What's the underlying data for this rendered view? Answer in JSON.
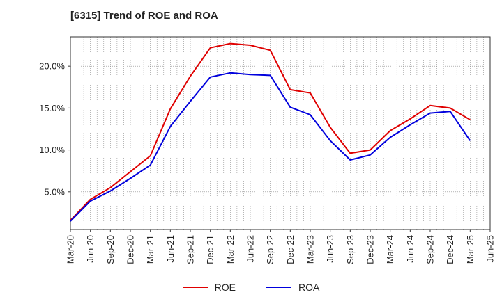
{
  "chart_data": {
    "type": "line",
    "title": "[6315]  Trend of ROE and ROA",
    "categories": [
      "Mar-20",
      "Jun-20",
      "Sep-20",
      "Dec-20",
      "Mar-21",
      "Jun-21",
      "Sep-21",
      "Dec-21",
      "Mar-22",
      "Jun-22",
      "Sep-22",
      "Dec-22",
      "Mar-23",
      "Jun-23",
      "Sep-23",
      "Dec-23",
      "Mar-24",
      "Jun-24",
      "Sep-24",
      "Dec-24",
      "Mar-25",
      "Jun-25"
    ],
    "series": [
      {
        "name": "ROE",
        "color": "#e00000",
        "values": [
          1.6,
          4.1,
          5.5,
          7.4,
          9.3,
          14.9,
          18.8,
          22.2,
          22.7,
          22.5,
          21.9,
          17.2,
          16.8,
          12.7,
          9.6,
          10.0,
          12.3,
          13.7,
          15.3,
          15.0,
          13.6,
          null
        ]
      },
      {
        "name": "ROA",
        "color": "#0000dd",
        "values": [
          1.5,
          3.9,
          5.1,
          6.6,
          8.2,
          12.8,
          15.8,
          18.7,
          19.2,
          19.0,
          18.9,
          15.1,
          14.2,
          11.1,
          8.8,
          9.4,
          11.5,
          13.0,
          14.4,
          14.6,
          11.1,
          null
        ]
      }
    ],
    "ylim": [
      0.5,
      23.5
    ],
    "yticks": [
      5.0,
      10.0,
      15.0,
      20.0
    ],
    "ytick_labels": [
      "5.0%",
      "10.0%",
      "15.0%",
      "20.0%"
    ],
    "xlabel": "",
    "ylabel": "",
    "grid": true,
    "legend_position": "bottom"
  }
}
